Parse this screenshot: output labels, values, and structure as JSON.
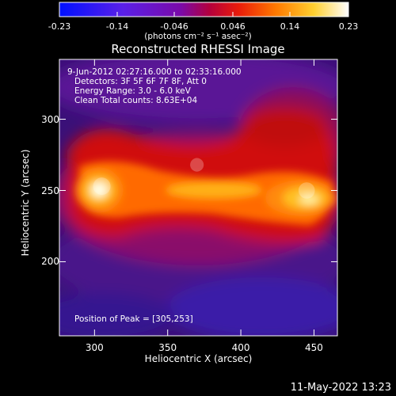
{
  "chart_data": {
    "type": "heatmap",
    "title": "Reconstructed RHESSI Image",
    "xlabel": "Heliocentric X (arcsec)",
    "ylabel": "Heliocentric Y (arcsec)",
    "xlim": [
      276,
      466
    ],
    "ylim": [
      148,
      342
    ],
    "x_ticks": [
      300,
      350,
      400,
      450
    ],
    "y_ticks": [
      200,
      250,
      300
    ],
    "colorbar": {
      "min": -0.23,
      "max": 0.23,
      "ticks": [
        "-0.23",
        "-0.14",
        "-0.046",
        "0.046",
        "0.14",
        "0.23"
      ],
      "units_label": "(photons cm⁻² s⁻¹ asec⁻²)"
    },
    "sources": [
      {
        "x": 305,
        "y": 253,
        "value": 0.23
      },
      {
        "x": 445,
        "y": 250,
        "value": 0.21
      },
      {
        "x": 370,
        "y": 268,
        "value": 0.16
      }
    ],
    "annotations": [
      "9-Jun-2012 02:27:16.000 to 02:33:16.000",
      "Detectors: 3F 5F 6F 7F 8F, Att 0",
      "Energy Range: 3.0 - 6.0 keV",
      "Clean    Total counts: 8.63E+04"
    ],
    "peak_text": "Position of Peak = [305,253]",
    "timestamp": "11-May-2022 13:23"
  }
}
